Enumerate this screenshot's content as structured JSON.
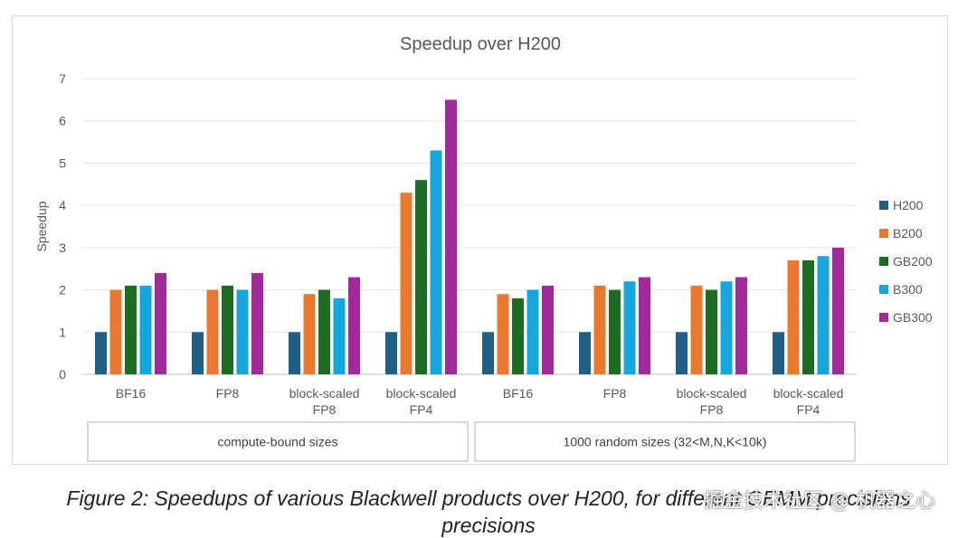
{
  "chart_data": {
    "type": "bar",
    "title": "Speedup over H200",
    "ylabel": "Speedup",
    "xlabel": "",
    "ylim": [
      0,
      7
    ],
    "yticks": [
      0,
      1,
      2,
      3,
      4,
      5,
      6,
      7
    ],
    "grid": true,
    "legend_position": "right",
    "categories": [
      [
        "BF16"
      ],
      [
        "FP8"
      ],
      [
        "block-scaled",
        "FP8"
      ],
      [
        "block-scaled",
        "FP4"
      ],
      [
        "BF16"
      ],
      [
        "FP8"
      ],
      [
        "block-scaled",
        "FP8"
      ],
      [
        "block-scaled",
        "FP4"
      ]
    ],
    "groups": [
      {
        "label": "compute-bound sizes",
        "categories": [
          0,
          1,
          2,
          3
        ]
      },
      {
        "label": "1000 random sizes (32<M,N,K<10k)",
        "categories": [
          4,
          5,
          6,
          7
        ]
      }
    ],
    "series": [
      {
        "name": "H200",
        "color": "#1f5f86",
        "values": [
          1.0,
          1.0,
          1.0,
          1.0,
          1.0,
          1.0,
          1.0,
          1.0
        ]
      },
      {
        "name": "B200",
        "color": "#e8792f",
        "values": [
          2.0,
          2.0,
          1.9,
          4.3,
          1.9,
          2.1,
          2.1,
          2.7
        ]
      },
      {
        "name": "GB200",
        "color": "#1e6b22",
        "values": [
          2.1,
          2.1,
          2.0,
          4.6,
          1.8,
          2.0,
          2.0,
          2.7
        ]
      },
      {
        "name": "B300",
        "color": "#14a6dc",
        "values": [
          2.1,
          2.0,
          1.8,
          5.3,
          2.0,
          2.2,
          2.2,
          2.8
        ]
      },
      {
        "name": "GB300",
        "color": "#a0299c",
        "values": [
          2.4,
          2.4,
          2.3,
          6.5,
          2.1,
          2.3,
          2.3,
          3.0
        ]
      }
    ]
  },
  "caption": {
    "line1": "Figure 2: Speedups of various Blackwell products over H200, for different GEMM precisions",
    "line2": "precisions"
  },
  "watermark": "掘金技术社区 @ 机器之心"
}
